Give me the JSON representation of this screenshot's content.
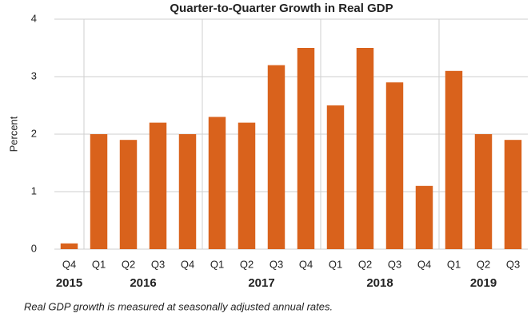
{
  "chart_data": {
    "type": "bar",
    "title": "Quarter-to-Quarter  Growth in Real GDP",
    "y_label": "Percent",
    "note": "Real GDP growth is measured at seasonally adjusted annual rates.",
    "color": "#d9621c",
    "groups": [
      {
        "name": "2015",
        "categories": [
          "Q4"
        ],
        "values": [
          0.1
        ]
      },
      {
        "name": "2016",
        "categories": [
          "Q1",
          "Q2",
          "Q3",
          "Q4"
        ],
        "values": [
          2.0,
          1.9,
          2.2,
          2.0
        ]
      },
      {
        "name": "2017",
        "categories": [
          "Q1",
          "Q2",
          "Q3",
          "Q4"
        ],
        "values": [
          2.3,
          2.2,
          3.2,
          3.5
        ]
      },
      {
        "name": "2018",
        "categories": [
          "Q1",
          "Q2",
          "Q3",
          "Q4"
        ],
        "values": [
          2.5,
          3.5,
          2.9,
          1.1
        ]
      },
      {
        "name": "2019",
        "categories": [
          "Q1",
          "Q2",
          "Q3"
        ],
        "values": [
          3.1,
          2.0,
          1.9
        ]
      }
    ],
    "ylim": [
      0,
      4
    ],
    "yticks": [
      0,
      1,
      2,
      3,
      4
    ],
    "grid": true
  }
}
